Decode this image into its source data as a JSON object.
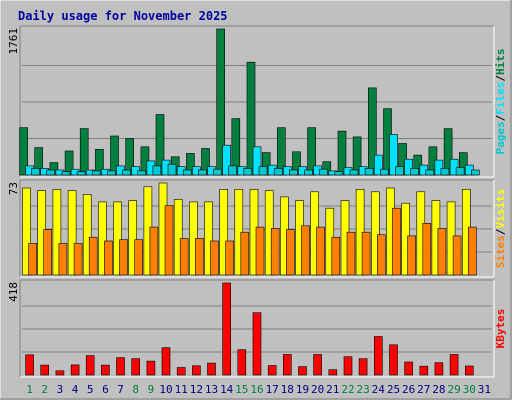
{
  "chart_data": {
    "type": "bar",
    "title": "Daily usage for November 2025",
    "categories": [
      "1",
      "2",
      "3",
      "4",
      "5",
      "6",
      "7",
      "8",
      "9",
      "10",
      "11",
      "12",
      "13",
      "14",
      "15",
      "16",
      "17",
      "18",
      "19",
      "20",
      "21",
      "22",
      "23",
      "24",
      "25",
      "26",
      "27",
      "28",
      "29",
      "30",
      "31"
    ],
    "weekend_days": [
      "1",
      "2",
      "8",
      "9",
      "15",
      "16",
      "22",
      "23",
      "29",
      "30"
    ],
    "top_panel": {
      "max_label": "1761",
      "axis_title_parts": [
        "Pages",
        "Files",
        "Hits"
      ],
      "ylim": [
        0,
        1761
      ],
      "series": [
        {
          "name": "Hits",
          "color": "#008040",
          "values": [
            570,
            330,
            150,
            290,
            560,
            310,
            470,
            440,
            340,
            730,
            220,
            260,
            320,
            1761,
            680,
            1360,
            270,
            570,
            280,
            570,
            160,
            530,
            460,
            1050,
            800,
            380,
            240,
            340,
            560,
            270,
            0
          ]
        },
        {
          "name": "Files",
          "color": "#00E0FF",
          "values": [
            110,
            80,
            60,
            70,
            60,
            70,
            110,
            100,
            170,
            180,
            100,
            100,
            100,
            360,
            100,
            340,
            120,
            100,
            100,
            110,
            50,
            90,
            100,
            240,
            490,
            190,
            120,
            180,
            190,
            120,
            0
          ]
        },
        {
          "name": "Pages",
          "color": "#00C8D0",
          "values": [
            80,
            60,
            40,
            40,
            50,
            50,
            60,
            50,
            110,
            130,
            60,
            60,
            70,
            110,
            80,
            100,
            80,
            60,
            60,
            70,
            40,
            60,
            80,
            70,
            100,
            80,
            60,
            80,
            90,
            60,
            0
          ]
        }
      ]
    },
    "middle_panel": {
      "max_label": "73",
      "axis_title_parts": [
        "Sites",
        "Visits"
      ],
      "ylim": [
        0,
        73
      ],
      "series": [
        {
          "name": "Visits",
          "color": "#FFFF00",
          "values": [
            69,
            67,
            68,
            67,
            64,
            58,
            58,
            59,
            70,
            73,
            60,
            58,
            58,
            68,
            68,
            68,
            67,
            62,
            59,
            66,
            53,
            59,
            68,
            66,
            69,
            57,
            66,
            59,
            58,
            68,
            0
          ]
        },
        {
          "name": "Sites",
          "color": "#FF8000",
          "values": [
            25,
            36,
            25,
            25,
            30,
            27,
            28,
            28,
            38,
            55,
            29,
            29,
            27,
            27,
            34,
            38,
            37,
            36,
            39,
            38,
            30,
            34,
            34,
            32,
            53,
            31,
            41,
            37,
            31,
            38,
            0
          ]
        }
      ]
    },
    "bottom_panel": {
      "max_label": "418",
      "axis_title_parts": [
        "KBytes"
      ],
      "ylim": [
        0,
        418
      ],
      "series": [
        {
          "name": "KBytes",
          "color": "#FF0000",
          "values": [
            92,
            45,
            19,
            46,
            88,
            45,
            79,
            74,
            63,
            124,
            34,
            42,
            54,
            418,
            115,
            283,
            43,
            93,
            38,
            93,
            24,
            83,
            74,
            175,
            137,
            59,
            40,
            56,
            93,
            41,
            0
          ]
        }
      ]
    },
    "colors": {
      "title": "#0000A0",
      "background": "#C0C0C0",
      "border_light": "#FFFFFF",
      "border_dark": "#808080",
      "gridline": "#808080",
      "weekday_label": "#000080",
      "weekend_label": "#008040",
      "separator_slash": "#000000"
    }
  }
}
